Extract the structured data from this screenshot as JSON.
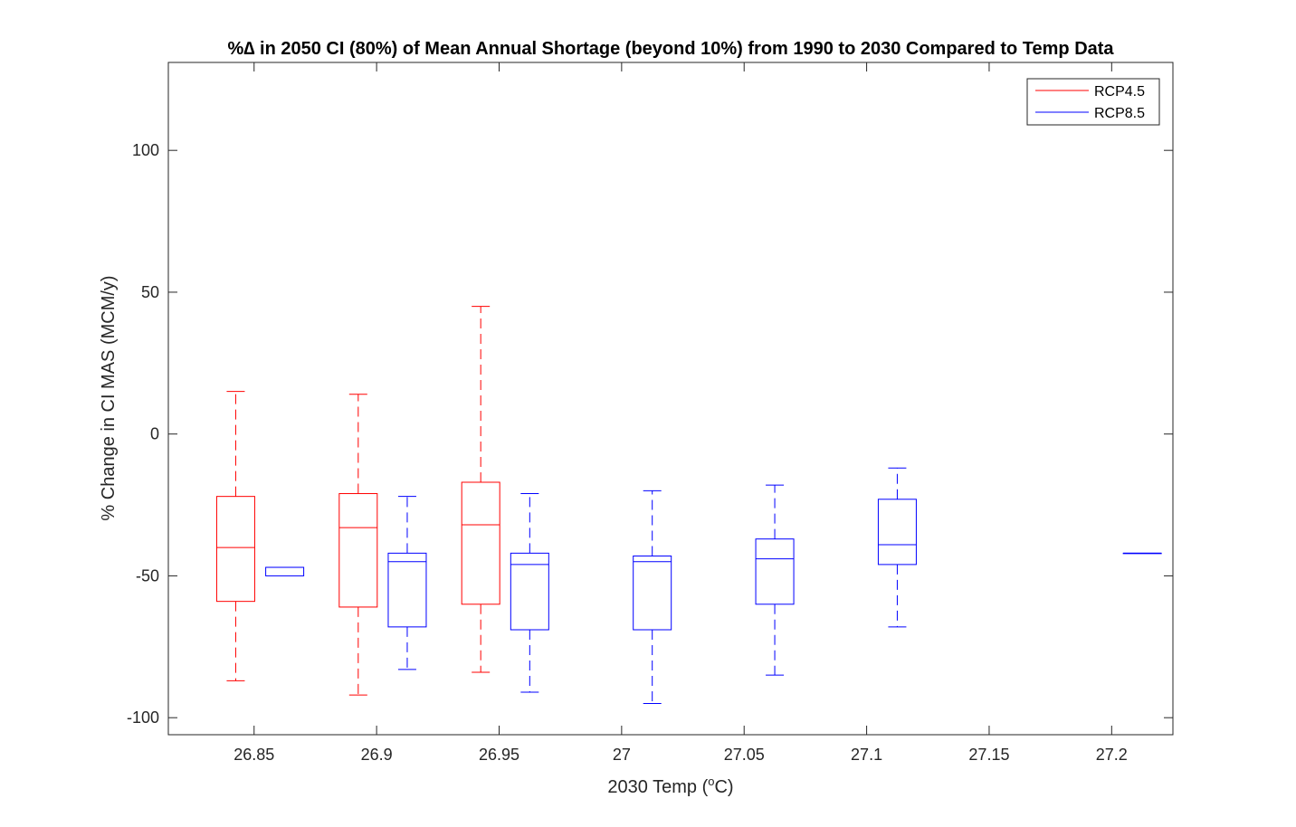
{
  "chart_data": {
    "type": "box",
    "title": "%∆ in 2050 CI (80%) of Mean Annual Shortage (beyond 10%) from 1990 to 2030 Compared to Temp Data",
    "xlabel_main": "2030 Temp (",
    "xlabel_sup": "o",
    "xlabel_end": "C)",
    "ylabel": "% Change in CI MAS (MCM/y)",
    "xlim": [
      26.815,
      27.225
    ],
    "ylim": [
      -106,
      131
    ],
    "xticks": [
      "26.85",
      "26.9",
      "26.95",
      "27",
      "27.05",
      "27.1",
      "27.15",
      "27.2"
    ],
    "xtick_values": [
      26.85,
      26.9,
      26.95,
      27.0,
      27.05,
      27.1,
      27.15,
      27.2
    ],
    "yticks": [
      "-100",
      "-50",
      "0",
      "50",
      "100"
    ],
    "ytick_values": [
      -100,
      -50,
      0,
      50,
      100
    ],
    "legend": {
      "position": "top-right",
      "entries": [
        "RCP4.5",
        "RCP8.5"
      ]
    },
    "series": [
      {
        "name": "RCP4.5",
        "color": "#ff0000",
        "boxes": [
          {
            "x": 26.8425,
            "whisker_low": -87,
            "q1": -59,
            "median": -40,
            "q3": -22,
            "whisker_high": 15
          },
          {
            "x": 26.8925,
            "whisker_low": -92,
            "q1": -61,
            "median": -33,
            "q3": -21,
            "whisker_high": 14
          },
          {
            "x": 26.9425,
            "whisker_low": -84,
            "q1": -60,
            "median": -32,
            "q3": -17,
            "whisker_high": 45
          }
        ]
      },
      {
        "name": "RCP8.5",
        "color": "#0000ff",
        "boxes": [
          {
            "x": 26.8625,
            "whisker_low": -50,
            "q1": -50,
            "median": -47,
            "q3": -47,
            "whisker_high": -47
          },
          {
            "x": 26.9125,
            "whisker_low": -83,
            "q1": -68,
            "median": -45,
            "q3": -42,
            "whisker_high": -22
          },
          {
            "x": 26.9625,
            "whisker_low": -91,
            "q1": -69,
            "median": -46,
            "q3": -42,
            "whisker_high": -21
          },
          {
            "x": 27.0125,
            "whisker_low": -95,
            "q1": -69,
            "median": -45,
            "q3": -43,
            "whisker_high": -20
          },
          {
            "x": 27.0625,
            "whisker_low": -85,
            "q1": -60,
            "median": -44,
            "q3": -37,
            "whisker_high": -18
          },
          {
            "x": 27.1125,
            "whisker_low": -68,
            "q1": -46,
            "median": -39,
            "q3": -23,
            "whisker_high": -12
          },
          {
            "x": 27.2125,
            "whisker_low": -42,
            "q1": -42,
            "median": -42,
            "q3": -42,
            "whisker_high": -42
          }
        ]
      }
    ]
  }
}
